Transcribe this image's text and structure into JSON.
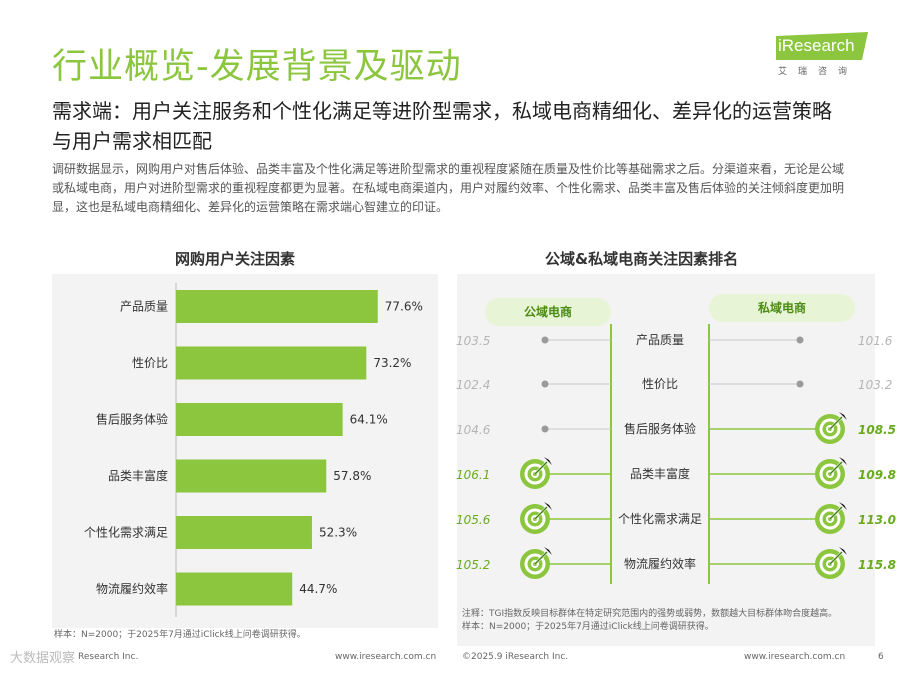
{
  "header": {
    "title": "行业概览-发展背景及驱动",
    "subtitle": "需求端：用户关注服务和个性化满足等进阶型需求，私域电商精细化、差异化的运营策略与用户需求相匹配",
    "description": "调研数据显示，网购用户对售后体验、品类丰富及个性化满足等进阶型需求的重视程度紧随在质量及性价比等基础需求之后。分渠道来看，无论是公域或私域电商，用户对进阶型需求的重视程度都更为显著。在私域电商渠道内，用户对履约效率、个性化需求、品类丰富及售后体验的关注倾斜度更加明显，这也是私域电商精细化、差异化的运营策略在需求端心智建立的印证。"
  },
  "logo": {
    "text": "iResearch",
    "sub": "艾瑞咨询"
  },
  "colors": {
    "accent": "#8cc63f",
    "bar": "#8cc63f",
    "grey": "#b5b5b5",
    "highlight_text": "#6aaa1e"
  },
  "chart_data": [
    {
      "type": "bar",
      "orientation": "horizontal",
      "title": "网购用户关注因素",
      "categories": [
        "产品质量",
        "性价比",
        "售后服务体验",
        "品类丰富度",
        "个性化需求满足",
        "物流履约效率"
      ],
      "values": [
        77.6,
        73.2,
        64.1,
        57.8,
        52.3,
        44.7
      ],
      "labels": [
        "77.6%",
        "73.2%",
        "64.1%",
        "57.8%",
        "52.3%",
        "44.7%"
      ],
      "unit": "%",
      "xlim": [
        0,
        100
      ]
    },
    {
      "type": "table",
      "title": "公域&私域电商关注因素排名",
      "series_names": [
        "公域电商",
        "私域电商"
      ],
      "categories": [
        "产品质量",
        "性价比",
        "售后服务体验",
        "品类丰富度",
        "个性化需求满足",
        "物流履约效率"
      ],
      "public": [
        "103.5",
        "102.4",
        "104.6",
        "106.1",
        "105.6",
        "105.2"
      ],
      "private": [
        "101.6",
        "103.2",
        "108.5",
        "109.8",
        "113.0",
        "115.8"
      ],
      "public_highlight": [
        false,
        false,
        false,
        true,
        true,
        true
      ],
      "private_highlight": [
        false,
        false,
        true,
        true,
        true,
        true
      ]
    }
  ],
  "notes": {
    "left_source": "样本：N=2000；于2025年7月通过iClick线上问卷调研获得。",
    "right_note": "注释：TGI指数反映目标群体在特定研究范围内的强势或弱势，数额越大目标群体吻合度越高。",
    "right_source": "样本：N=2000；于2025年7月通过iClick线上问卷调研获得。"
  },
  "footer": {
    "left": "Research Inc.",
    "url1": "www.iresearch.com.cn",
    "copyright": "©2025.9 iResearch Inc.",
    "url2": "www.iresearch.com.cn",
    "page": "6"
  },
  "watermark": "大数据观察"
}
